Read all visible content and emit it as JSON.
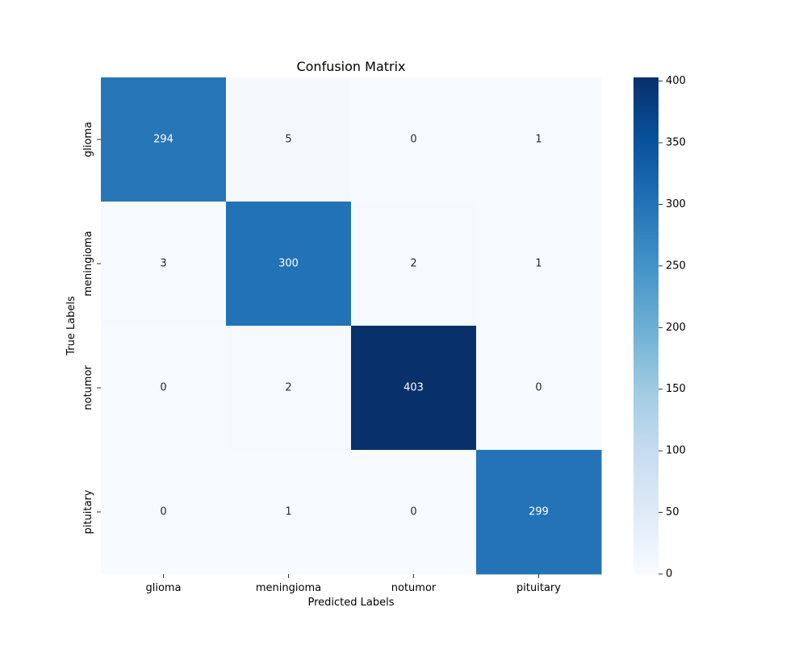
{
  "chart_data": {
    "type": "heatmap",
    "title": "Confusion Matrix",
    "xlabel": "Predicted Labels",
    "ylabel": "True Labels",
    "x_categories": [
      "glioma",
      "meningioma",
      "notumor",
      "pituitary"
    ],
    "y_categories": [
      "glioma",
      "meningioma",
      "notumor",
      "pituitary"
    ],
    "values": [
      [
        294,
        5,
        0,
        1
      ],
      [
        3,
        300,
        2,
        1
      ],
      [
        0,
        2,
        403,
        0
      ],
      [
        0,
        1,
        0,
        299
      ]
    ],
    "colorbar": {
      "min": 0,
      "max": 403,
      "ticks": [
        0,
        50,
        100,
        150,
        200,
        250,
        300,
        350,
        400
      ],
      "colormap": "Blues"
    },
    "annot_text_colors": {
      "light": "#ffffff",
      "dark": "#262626"
    }
  }
}
